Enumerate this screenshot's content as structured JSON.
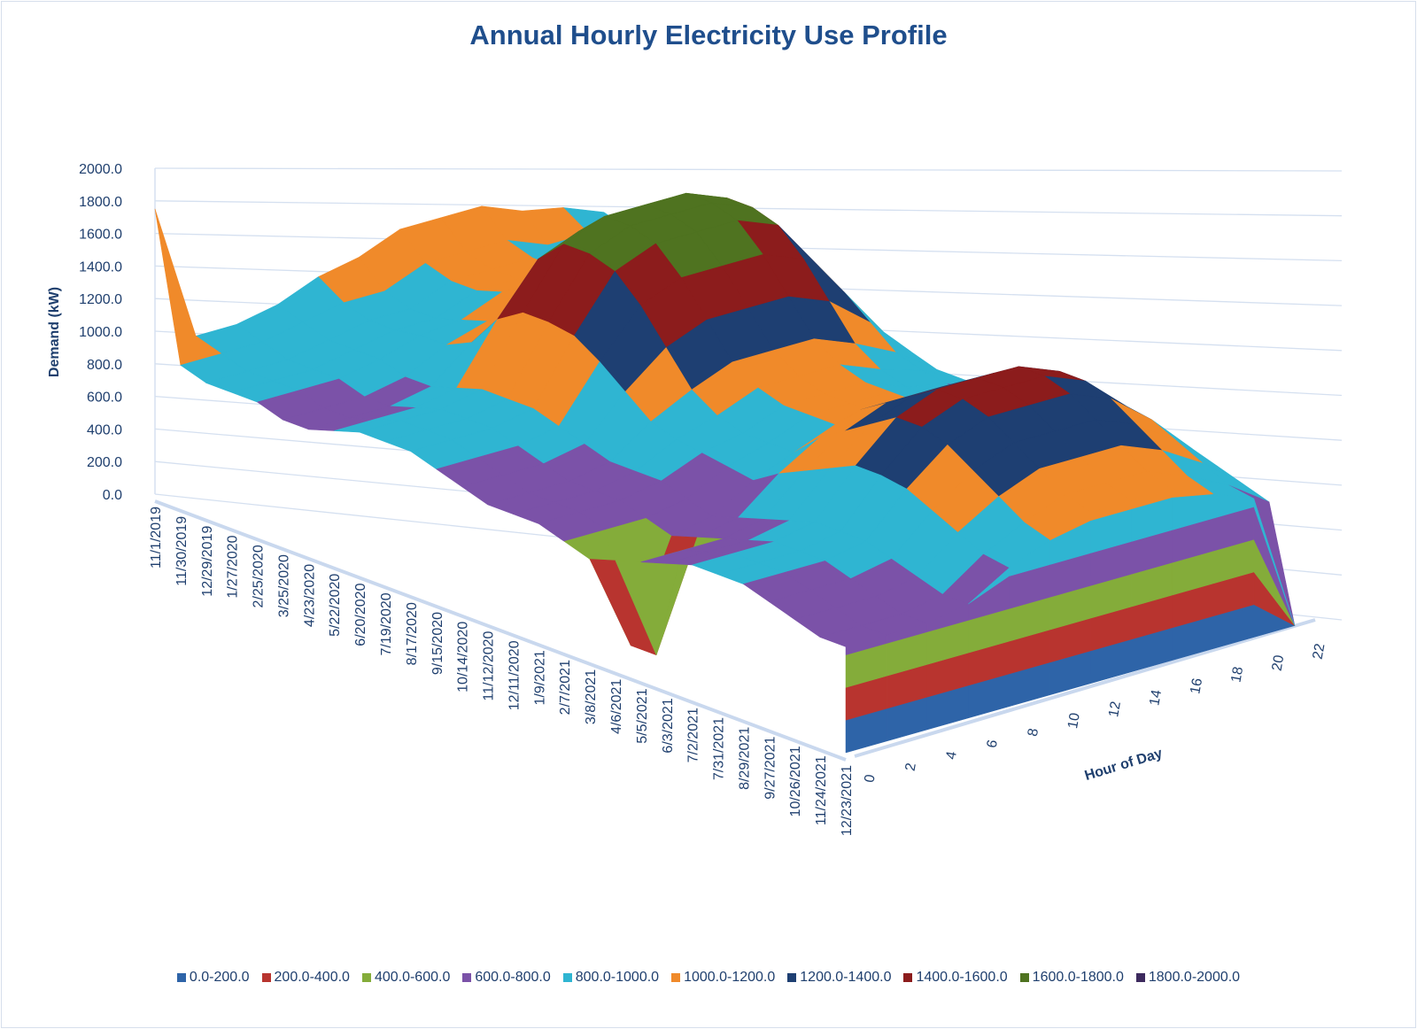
{
  "chart_data": {
    "type": "surface",
    "title": "Annual Hourly Electricity Use Profile",
    "zlabel": "Demand (kW)",
    "ylabel": "Hour of Day",
    "xlabel": "",
    "zlim": [
      0,
      2000
    ],
    "z_ticks": [
      "0.0",
      "200.0",
      "400.0",
      "600.0",
      "800.0",
      "1000.0",
      "1200.0",
      "1400.0",
      "1600.0",
      "1800.0",
      "2000.0"
    ],
    "hours": [
      0,
      2,
      4,
      6,
      8,
      10,
      12,
      14,
      16,
      18,
      20,
      22
    ],
    "dates": [
      "11/1/2019",
      "11/30/2019",
      "12/29/2019",
      "1/27/2020",
      "2/25/2020",
      "3/25/2020",
      "4/23/2020",
      "5/22/2020",
      "6/20/2020",
      "7/19/2020",
      "8/17/2020",
      "9/15/2020",
      "10/14/2020",
      "11/12/2020",
      "12/11/2020",
      "1/9/2021",
      "2/7/2021",
      "3/8/2021",
      "4/6/2021",
      "5/5/2021",
      "6/3/2021",
      "7/2/2021",
      "7/31/2021",
      "8/29/2021",
      "9/27/2021",
      "10/26/2021",
      "11/24/2021",
      "12/23/2021"
    ],
    "values": [
      [
        1750,
        900,
        900,
        950,
        1050,
        1100,
        1200,
        1200,
        1200,
        1100,
        1050,
        950
      ],
      [
        850,
        850,
        850,
        900,
        950,
        950,
        1050,
        1050,
        1050,
        950,
        950,
        900
      ],
      [
        800,
        800,
        800,
        850,
        900,
        900,
        1000,
        1000,
        1000,
        900,
        900,
        850
      ],
      [
        800,
        800,
        800,
        850,
        900,
        900,
        1000,
        1000,
        1000,
        900,
        900,
        850
      ],
      [
        800,
        800,
        800,
        850,
        925,
        950,
        1050,
        1050,
        1050,
        950,
        925,
        850
      ],
      [
        750,
        750,
        750,
        800,
        925,
        1000,
        1100,
        1100,
        1100,
        1000,
        925,
        800
      ],
      [
        750,
        750,
        750,
        800,
        1000,
        1150,
        1250,
        1250,
        1250,
        1150,
        1000,
        800
      ],
      [
        800,
        800,
        800,
        850,
        1200,
        1500,
        1600,
        1600,
        1600,
        1500,
        1200,
        850
      ],
      [
        850,
        850,
        850,
        900,
        1300,
        1650,
        1750,
        1750,
        1750,
        1650,
        1300,
        900
      ],
      [
        850,
        850,
        850,
        900,
        1300,
        1650,
        1750,
        1750,
        1750,
        1650,
        1300,
        900
      ],
      [
        850,
        850,
        850,
        900,
        1275,
        1600,
        1700,
        1700,
        1700,
        1600,
        1275,
        900
      ],
      [
        800,
        800,
        800,
        850,
        1175,
        1450,
        1550,
        1550,
        1550,
        1450,
        1175,
        850
      ],
      [
        750,
        750,
        750,
        800,
        1050,
        1250,
        1350,
        1350,
        1350,
        1250,
        1050,
        800
      ],
      [
        700,
        700,
        700,
        750,
        925,
        1050,
        1150,
        1150,
        1150,
        1050,
        925,
        750
      ],
      [
        700,
        700,
        700,
        750,
        875,
        950,
        1050,
        1050,
        1050,
        950,
        875,
        750
      ],
      [
        700,
        700,
        700,
        750,
        850,
        900,
        1000,
        1000,
        1000,
        900,
        850,
        750
      ],
      [
        650,
        650,
        650,
        700,
        825,
        900,
        1000,
        1000,
        1000,
        900,
        825,
        700
      ],
      [
        600,
        0,
        600,
        650,
        800,
        900,
        1000,
        1000,
        1000,
        900,
        800,
        650
      ],
      [
        650,
        0,
        650,
        700,
        900,
        1050,
        1150,
        1150,
        1150,
        1050,
        900,
        700
      ],
      [
        700,
        700,
        700,
        750,
        975,
        1150,
        1250,
        1250,
        1250,
        1150,
        975,
        750
      ],
      [
        750,
        750,
        750,
        800,
        1050,
        1250,
        1350,
        1350,
        1350,
        1250,
        1050,
        800
      ],
      [
        800,
        800,
        800,
        850,
        1125,
        1350,
        1450,
        1450,
        1450,
        1350,
        1125,
        850
      ],
      [
        800,
        800,
        800,
        850,
        1125,
        1350,
        1450,
        1450,
        1450,
        1350,
        1125,
        850
      ],
      [
        800,
        800,
        800,
        850,
        1100,
        1300,
        1400,
        1400,
        1400,
        1300,
        1100,
        850
      ],
      [
        750,
        750,
        750,
        800,
        1025,
        1200,
        1300,
        1300,
        1300,
        1200,
        1025,
        800
      ],
      [
        700,
        700,
        700,
        750,
        950,
        1100,
        1200,
        1200,
        1200,
        1100,
        950,
        750
      ],
      [
        650,
        650,
        650,
        700,
        875,
        1000,
        1100,
        1100,
        1100,
        1000,
        875,
        700
      ],
      [
        650,
        650,
        650,
        700,
        850,
        950,
        1050,
        1050,
        1050,
        950,
        850,
        0
      ]
    ],
    "legend": [
      {
        "label": "0.0-200.0",
        "color": "#2e64a8"
      },
      {
        "label": "200.0-400.0",
        "color": "#b8342f"
      },
      {
        "label": "400.0-600.0",
        "color": "#84ac3a"
      },
      {
        "label": "600.0-800.0",
        "color": "#7b52a8"
      },
      {
        "label": "800.0-1000.0",
        "color": "#2fb5d2"
      },
      {
        "label": "1000.0-1200.0",
        "color": "#f08a2a"
      },
      {
        "label": "1200.0-1400.0",
        "color": "#1e3f72"
      },
      {
        "label": "1400.0-1600.0",
        "color": "#8c1c1c"
      },
      {
        "label": "1600.0-1800.0",
        "color": "#4f7320"
      },
      {
        "label": "1800.0-2000.0",
        "color": "#3d2a5e"
      }
    ],
    "legend_position": "bottom"
  }
}
